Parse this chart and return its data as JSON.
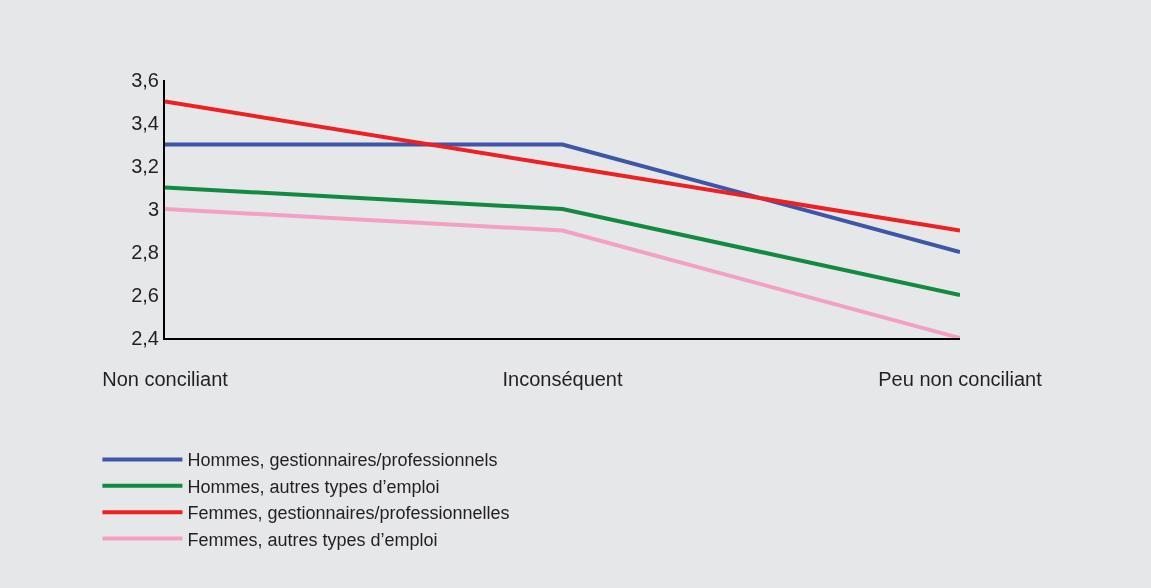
{
  "chart_data": {
    "type": "line",
    "categories": [
      "Non conciliant",
      "Inconséquent",
      "Peu non conciliant"
    ],
    "series": [
      {
        "name": "Hommes, gestionnaires/professionnels",
        "color": "#3f55a5",
        "values": [
          3.3,
          3.3,
          2.8
        ]
      },
      {
        "name": "Hommes, autres types d’emploi",
        "color": "#138a43",
        "values": [
          3.1,
          3.0,
          2.6
        ]
      },
      {
        "name": "Femmes, gestionnaires/professionnelles",
        "color": "#ed2024",
        "values": [
          3.5,
          3.2,
          2.9
        ]
      },
      {
        "name": "Femmes, autres types d’emploi",
        "color": "#f4a0c4",
        "values": [
          3.0,
          2.9,
          2.4
        ]
      }
    ],
    "ylim": [
      2.4,
      3.6
    ],
    "yticks": [
      {
        "value": 2.4,
        "label": "2,4"
      },
      {
        "value": 2.6,
        "label": "2,6"
      },
      {
        "value": 2.8,
        "label": "2,8"
      },
      3,
      {
        "value": 3.2,
        "label": "3,2"
      },
      {
        "value": 3.4,
        "label": "3,4"
      },
      {
        "value": 3.6,
        "label": "3,6"
      }
    ],
    "grid": false,
    "legend": "bottom",
    "marker": "none",
    "line_style": "solid"
  }
}
